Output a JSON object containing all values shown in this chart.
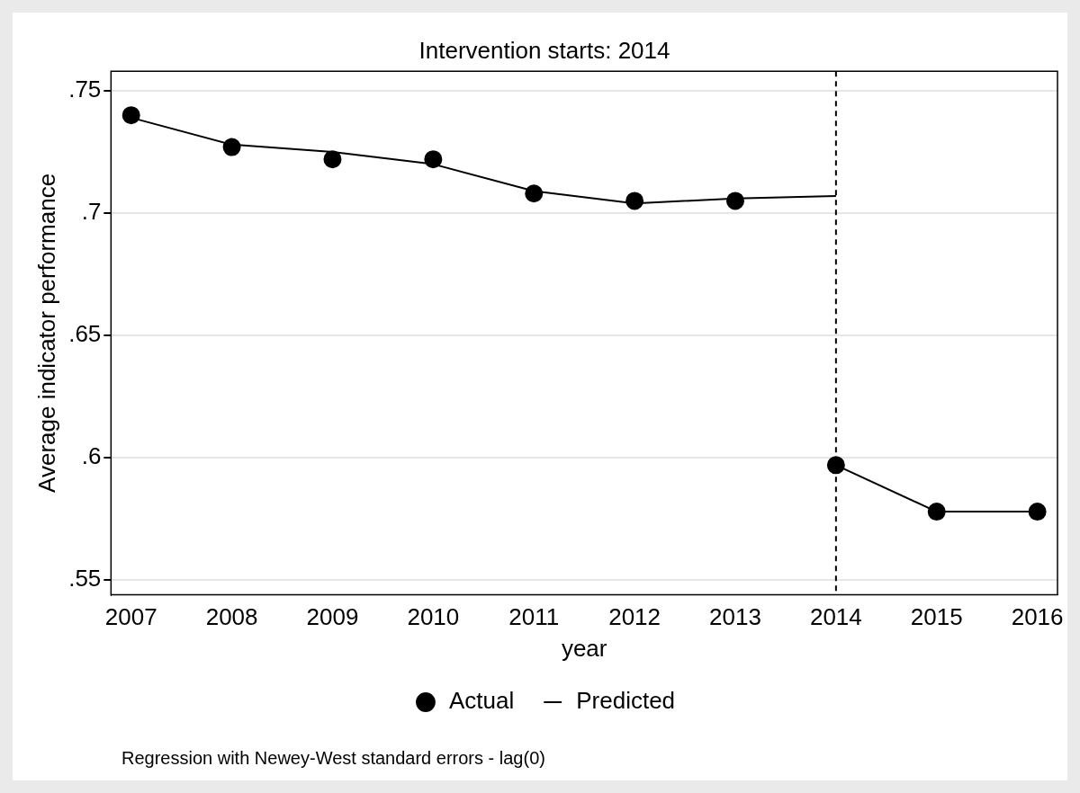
{
  "chart_data": {
    "type": "scatter",
    "title": "Intervention starts: 2014",
    "xlabel": "year",
    "ylabel": "Average indicator performance",
    "x": [
      2007,
      2008,
      2009,
      2010,
      2011,
      2012,
      2013,
      2014,
      2015,
      2016
    ],
    "series": [
      {
        "name": "Actual",
        "color": "#000000",
        "marker": "circle",
        "values": [
          0.74,
          0.727,
          0.722,
          0.722,
          0.708,
          0.705,
          0.705,
          0.597,
          0.578,
          0.578
        ]
      },
      {
        "name": "Predicted",
        "type": "line",
        "color": "#000000",
        "marker": "none",
        "line_style": "solid",
        "x": [
          2007,
          2008,
          2009,
          2010,
          2011,
          2012,
          2013,
          2014
        ],
        "values": [
          0.739,
          0.728,
          0.725,
          0.72,
          0.709,
          0.704,
          0.706,
          0.707
        ]
      },
      {
        "type": "line",
        "color": "#000000",
        "marker": "none",
        "line_style": "solid",
        "x": [
          2014,
          2015,
          2016
        ],
        "values": [
          0.597,
          0.578,
          0.578
        ]
      }
    ],
    "xlim": [
      2006.8,
      2016.2
    ],
    "xticks": [
      2007,
      2008,
      2009,
      2010,
      2011,
      2012,
      2013,
      2014,
      2015,
      2016
    ],
    "ylim": [
      0.544,
      0.758
    ],
    "yticks": [
      {
        "value": 0.55,
        "label": ".55"
      },
      {
        "value": 0.6,
        "label": ".6"
      },
      {
        "value": 0.65,
        "label": ".65"
      },
      {
        "value": 0.7,
        "label": ".7"
      },
      {
        "value": 0.75,
        "label": ".75"
      }
    ],
    "ref_lines": [
      {
        "axis": "x",
        "value": 2014,
        "line_style": "dashed",
        "color": "#000000"
      }
    ],
    "grid": "y",
    "legend": "bottom",
    "annotations": [
      "Regression with Newey-West standard errors - lag(0)"
    ]
  }
}
